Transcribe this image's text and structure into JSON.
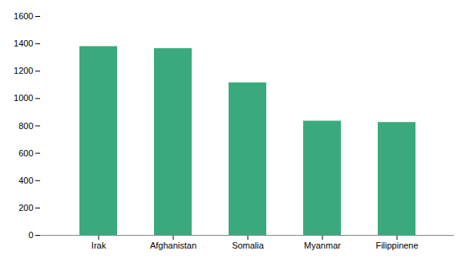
{
  "chart_data": {
    "type": "bar",
    "categories": [
      "Irak",
      "Afghanistan",
      "Somalia",
      "Myanmar",
      "Filippinene"
    ],
    "values": [
      1380,
      1365,
      1115,
      835,
      825
    ],
    "color": "#3aaa7e",
    "ylim": [
      0,
      1600
    ],
    "yticks": [
      0,
      200,
      400,
      600,
      800,
      1000,
      1200,
      1400,
      1600
    ],
    "grid": false
  }
}
